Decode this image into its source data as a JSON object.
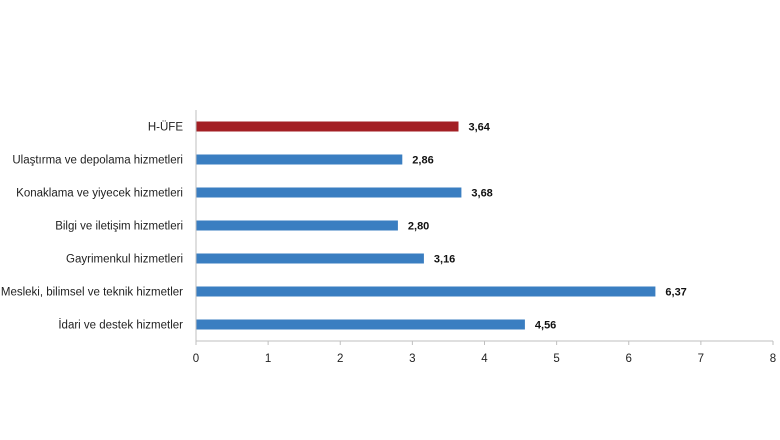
{
  "chart_data": {
    "type": "bar",
    "orientation": "horizontal",
    "categories": [
      "H-ÜFE",
      "Ulaştırma ve depolama hizmetleri",
      "Konaklama ve yiyecek hizmetleri",
      "Bilgi ve iletişim hizmetleri",
      "Gayrimenkul hizmetleri",
      "Mesleki, bilimsel ve teknik hizmetler",
      "İdari ve destek hizmetler"
    ],
    "values": [
      3.64,
      2.86,
      3.68,
      2.8,
      3.16,
      6.37,
      4.56
    ],
    "value_labels": [
      "3,64",
      "2,86",
      "3,68",
      "2,80",
      "3,16",
      "6,37",
      "4,56"
    ],
    "bar_colors": [
      "#A31F24",
      "#3A7EC1",
      "#3A7EC1",
      "#3A7EC1",
      "#3A7EC1",
      "#3A7EC1",
      "#3A7EC1"
    ],
    "xlim": [
      0,
      8
    ],
    "xticks": [
      "0",
      "1",
      "2",
      "3",
      "4",
      "5",
      "6",
      "7",
      "8"
    ],
    "grid": false,
    "axis_color": "#BFBFBF"
  }
}
